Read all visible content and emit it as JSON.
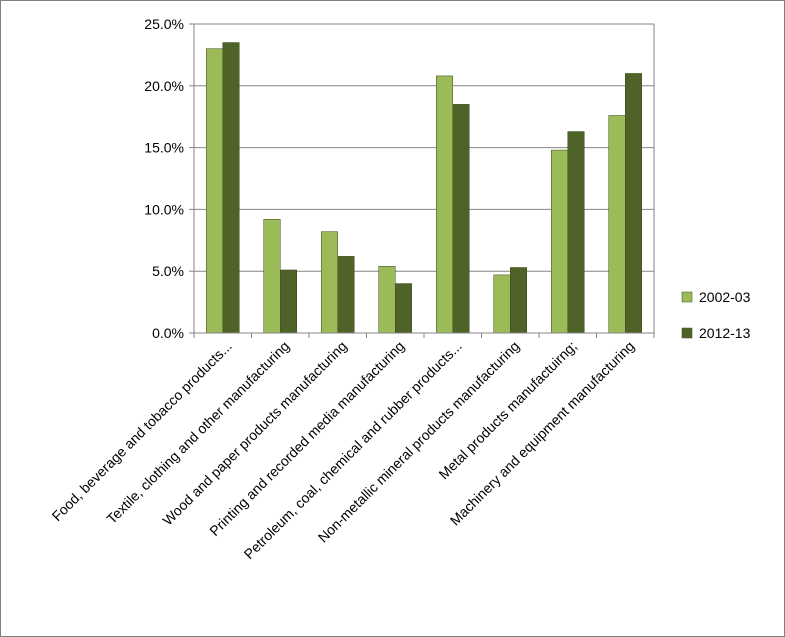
{
  "chart_data": {
    "type": "bar",
    "title": "",
    "xlabel": "",
    "ylabel": "",
    "ylim": [
      0,
      0.25
    ],
    "yticks": [
      "0.0%",
      "5.0%",
      "10.0%",
      "15.0%",
      "20.0%",
      "25.0%"
    ],
    "grid": true,
    "legend_position": "right",
    "categories": [
      "Food, beverage and tobacco products...",
      "Textile, clothing and other manufacturing",
      "Wood and paper products manufacturing",
      "Printing and recorded media manufacturing",
      "Petroleum, coal, chemical and rubber products...",
      "Non-metallic mineral products manufacturing",
      "Metal products manufactuirng;",
      "Machinery and equipment manufacturing"
    ],
    "series": [
      {
        "name": "2002-03",
        "color": "#9bbb59",
        "values": [
          0.23,
          0.092,
          0.082,
          0.054,
          0.208,
          0.047,
          0.148,
          0.176
        ]
      },
      {
        "name": "2012-13",
        "color": "#4f6228",
        "values": [
          0.235,
          0.051,
          0.062,
          0.04,
          0.185,
          0.053,
          0.163,
          0.21
        ]
      }
    ]
  }
}
